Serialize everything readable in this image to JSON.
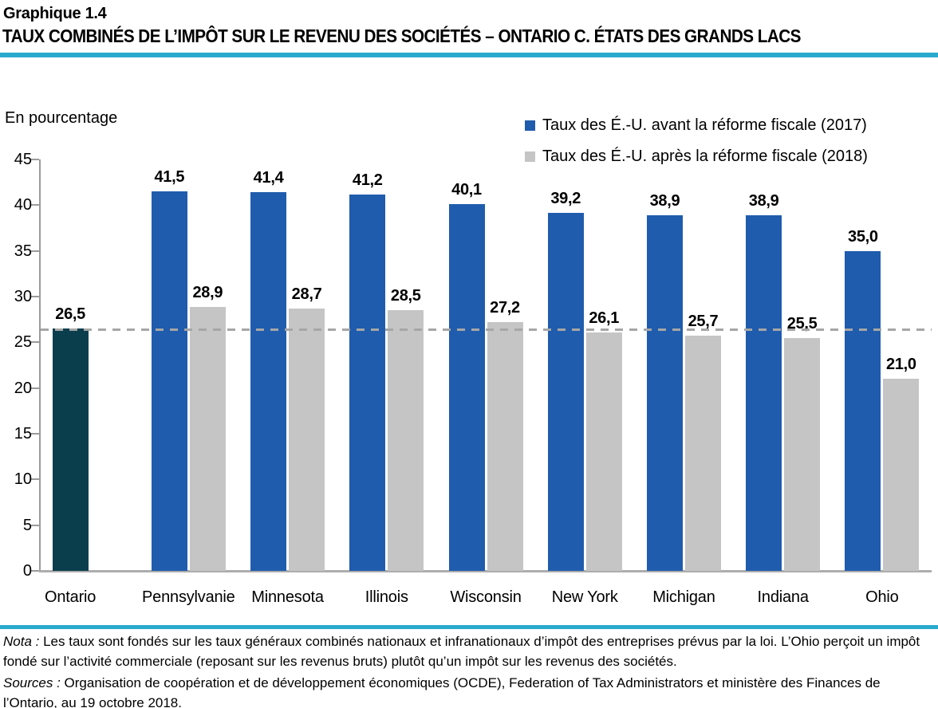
{
  "header": {
    "figure_label": "Graphique 1.4",
    "title": "TAUX COMBINÉS DE L’IMPÔT SUR LE REVENU DES SOCIÉTÉS – ONTARIO C. ÉTATS DES GRANDS LACS"
  },
  "chart_data": {
    "type": "bar",
    "unit_label": "En pourcentage",
    "categories": [
      "Ontario",
      "Pennsylvanie",
      "Minnesota",
      "Illinois",
      "Wisconsin",
      "New York",
      "Michigan",
      "Indiana",
      "Ohio"
    ],
    "series": [
      {
        "name": "Taux des É.-U. avant la réforme fiscale (2017)",
        "color": "#1f5cad",
        "values": [
          null,
          41.5,
          41.4,
          41.2,
          40.1,
          39.2,
          38.9,
          38.9,
          35.0
        ]
      },
      {
        "name": "Taux des É.-U. après la réforme fiscale (2018)",
        "color": "#c5c5c5",
        "values": [
          null,
          28.9,
          28.7,
          28.5,
          27.2,
          26.1,
          25.7,
          25.5,
          21.0
        ]
      }
    ],
    "ontario_series": {
      "name": "Ontario",
      "color": "#0b3e4d",
      "value": 26.5
    },
    "reference_line_value": 26.4,
    "ylim": [
      0,
      45
    ],
    "yticks": [
      0,
      5,
      10,
      15,
      20,
      25,
      30,
      35,
      40,
      45
    ],
    "decimal_separator": ",",
    "legend_position": "top-right",
    "grid": false
  },
  "footer": {
    "nota_label": "Nota :",
    "nota_text": " Les taux sont fondés sur les taux généraux combinés nationaux et infranationaux d’impôt des entreprises prévus par la loi. L’Ohio perçoit un impôt fondé sur l’activité commerciale (reposant sur les revenus bruts) plutôt qu’un impôt sur les revenus des sociétés.",
    "sources_label": "Sources :",
    "sources_text": " Organisation de coopération et de développement économiques (OCDE), Federation of Tax Administrators et ministère des Finances de l’Ontario, au 19 octobre 2018."
  },
  "colors": {
    "accent_rule": "#29a9ce",
    "bar_blue": "#1f5cad",
    "bar_gray": "#c5c5c5",
    "bar_ontario": "#0b3e4d",
    "dashed_line": "#a6a6a6",
    "axis": "#9b9b9b"
  }
}
